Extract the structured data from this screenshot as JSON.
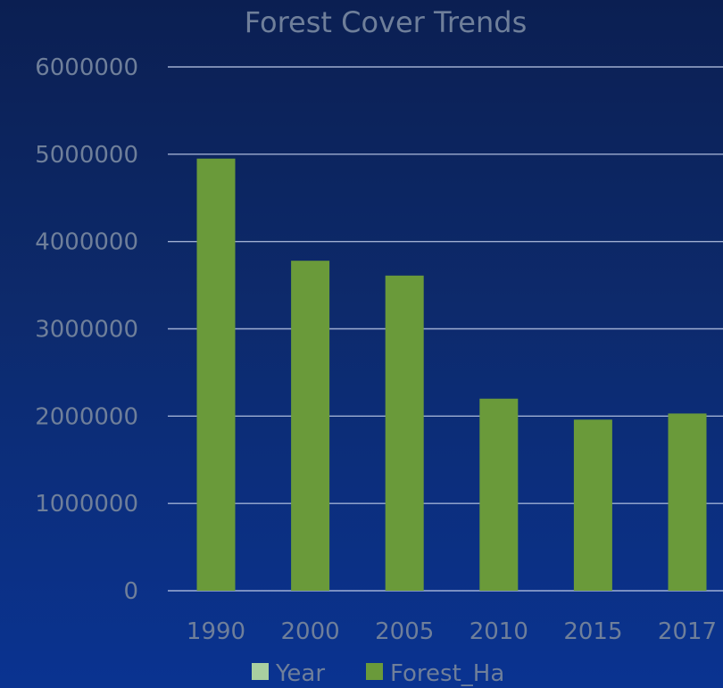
{
  "chart_data": {
    "type": "bar",
    "title": "Forest Cover Trends",
    "categories": [
      "1990",
      "2000",
      "2005",
      "2010",
      "2015",
      "2017"
    ],
    "series": [
      {
        "name": "Forest_Ha",
        "color": "#6a9a3a",
        "values": [
          4950000,
          3780000,
          3610000,
          2200000,
          1960000,
          2030000
        ]
      }
    ],
    "legend": [
      {
        "label": "Year",
        "color": "#a9cfa0"
      },
      {
        "label": "Forest_Ha",
        "color": "#6a9a3a"
      }
    ],
    "legend_position": "bottom",
    "ylim": [
      0,
      6000000
    ],
    "y_ticks": [
      "0",
      "1000000",
      "2000000",
      "3000000",
      "4000000",
      "5000000",
      "6000000"
    ],
    "grid": true
  }
}
